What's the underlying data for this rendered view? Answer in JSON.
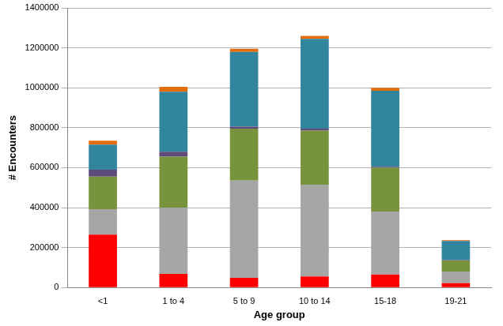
{
  "chart_data": {
    "type": "bar",
    "stacked": true,
    "grid": true,
    "x_label": "Age group",
    "y_label": "# Encounters",
    "categories": [
      "<1",
      "1 to 4",
      "5 to 9",
      "10 to 14",
      "15-18",
      "19-21"
    ],
    "series": [
      {
        "color": "#ff0000",
        "values": [
          265000,
          68000,
          48000,
          55000,
          65000,
          22000
        ]
      },
      {
        "color": "#a6a6a6",
        "values": [
          127000,
          332000,
          487000,
          460000,
          315000,
          58000
        ]
      },
      {
        "color": "#77933c",
        "values": [
          163000,
          255000,
          260000,
          270000,
          220000,
          55000
        ]
      },
      {
        "color": "#604a7b",
        "values": [
          35000,
          25000,
          10000,
          10000,
          5000,
          2000
        ]
      },
      {
        "color": "#31859c",
        "values": [
          125000,
          300000,
          375000,
          450000,
          380000,
          96000
        ]
      },
      {
        "color": "#e46c0a",
        "values": [
          20000,
          25000,
          15000,
          15000,
          15000,
          4000
        ]
      }
    ],
    "ylim": [
      0,
      1400000
    ],
    "yticks": [
      0,
      200000,
      400000,
      600000,
      800000,
      1000000,
      1200000,
      1400000
    ]
  }
}
